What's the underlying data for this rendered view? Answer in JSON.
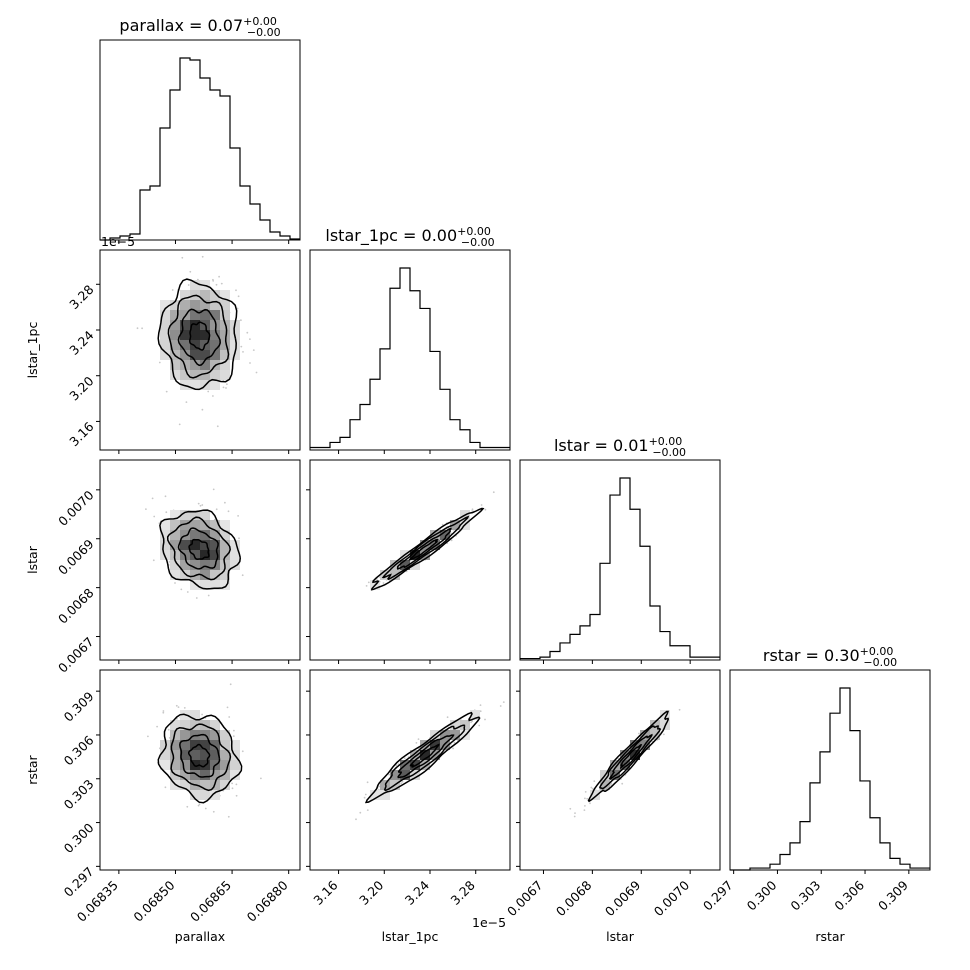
{
  "chart_data": {
    "type": "corner",
    "parameters": [
      "parallax",
      "lstar_1pc",
      "lstar",
      "rstar"
    ],
    "axis_labels": [
      "parallax",
      "lstar_1pc",
      "lstar",
      "rstar"
    ],
    "titles": [
      {
        "name": "parallax",
        "value": "0.07",
        "plus": "+0.00",
        "minus": "−0.00"
      },
      {
        "name": "lstar_1pc",
        "value": "0.00",
        "plus": "+0.00",
        "minus": "−0.00"
      },
      {
        "name": "lstar",
        "value": "0.01",
        "plus": "+0.00",
        "minus": "−0.00"
      },
      {
        "name": "rstar",
        "value": "0.30",
        "plus": "+0.00",
        "minus": "−0.00"
      }
    ],
    "scientific_offset": "1e−5",
    "ranges": [
      [
        0.0683,
        0.06883
      ],
      [
        3.135e-05,
        3.31e-05
      ],
      [
        0.006652,
        0.007061
      ],
      [
        0.29675,
        0.31045
      ]
    ],
    "ticks": [
      {
        "values": [
          0.06835,
          0.0685,
          0.06865,
          0.0688
        ],
        "labels": [
          "0.06835",
          "0.06850",
          "0.06865",
          "0.06880"
        ]
      },
      {
        "values": [
          3.16e-05,
          3.2e-05,
          3.24e-05,
          3.28e-05
        ],
        "labels": [
          "3.16",
          "3.20",
          "3.24",
          "3.28"
        ]
      },
      {
        "values": [
          0.0067,
          0.0068,
          0.0069,
          0.007
        ],
        "labels": [
          "0.0067",
          "0.0068",
          "0.0069",
          "0.0070"
        ]
      },
      {
        "values": [
          0.297,
          0.3,
          0.303,
          0.306,
          0.309
        ],
        "labels": [
          "0.297",
          "0.300",
          "0.303",
          "0.306",
          "0.309"
        ]
      }
    ],
    "histograms": [
      [
        0,
        1,
        2,
        3,
        25,
        27,
        56,
        75,
        91,
        90,
        81,
        75,
        72,
        46,
        27,
        18,
        10,
        4,
        2,
        0.5
      ],
      [
        1,
        1,
        3,
        5,
        12,
        18,
        28,
        40,
        64,
        72,
        63,
        56,
        39,
        24,
        12,
        8,
        3,
        1,
        1,
        1
      ],
      [
        0.5,
        0.5,
        1,
        3,
        6,
        9,
        12,
        16,
        34,
        58,
        64,
        53,
        40,
        19,
        10,
        5,
        5,
        1,
        1,
        1
      ],
      [
        0,
        0,
        1,
        1,
        3,
        8,
        14,
        25,
        45,
        61,
        81,
        94,
        72,
        46,
        27,
        14,
        6,
        3,
        1,
        1
      ]
    ],
    "correlations": {
      "1,0": -0.05,
      "2,0": -0.2,
      "2,1": 0.97,
      "3,0": -0.12,
      "3,1": 0.94,
      "3,2": 0.96
    },
    "centers": [
      0.068563,
      3.235e-05,
      0.006878,
      0.30455
    ],
    "spreads": [
      5.07e-05,
      2.3e-07,
      3.95e-05,
      0.00142
    ],
    "grid": false,
    "legend": "none"
  }
}
